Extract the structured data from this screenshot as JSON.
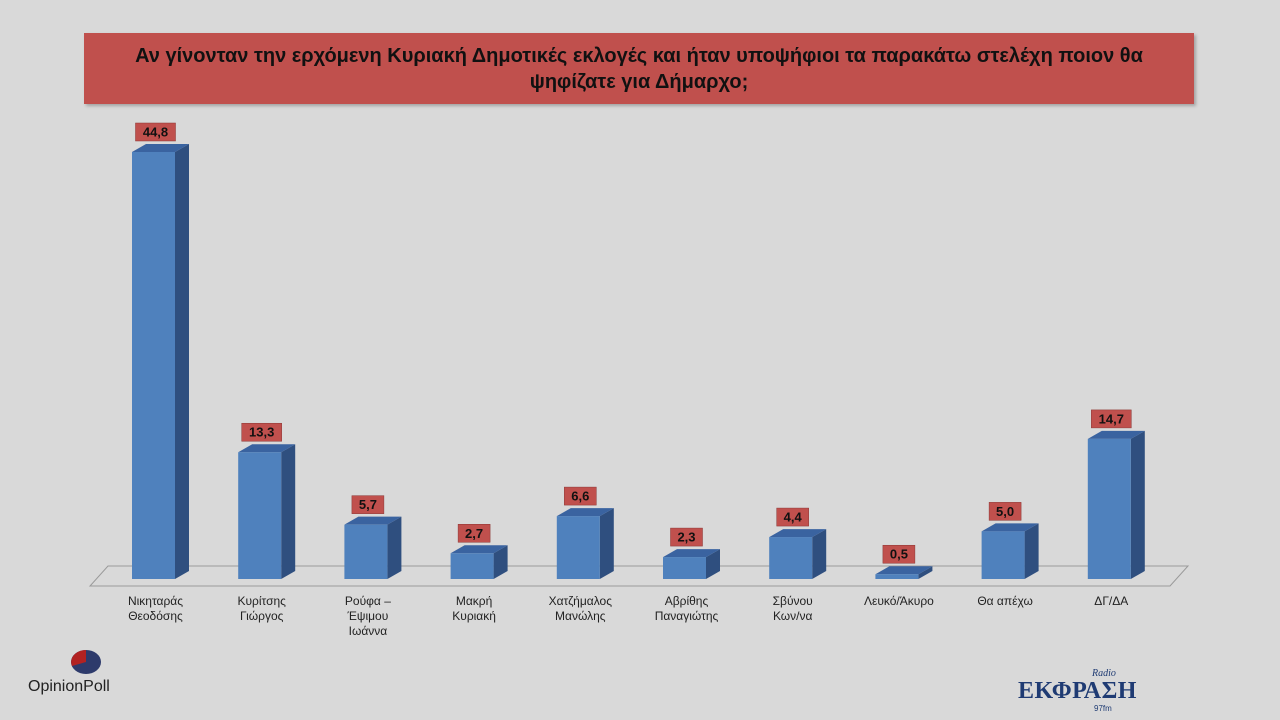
{
  "chart_data": {
    "type": "bar",
    "title": "Αν γίνονταν την ερχόμενη Κυριακή Δημοτικές εκλογές και ήταν υποψήφιοι τα παρακάτω στελέχη ποιον θα ψηφίζατε για Δήμαρχο;",
    "categories": [
      [
        "Νικηταράς",
        "Θεοδόσης"
      ],
      [
        "Κυρίτσης",
        "Γιώργος"
      ],
      [
        "Ρούφα –",
        "Έψιμου",
        "Ιωάννα"
      ],
      [
        "Μακρή",
        "Κυριακή"
      ],
      [
        "Χατζήμαλος",
        "Μανώλης"
      ],
      [
        "Αβρίθης",
        "Παναγιώτης"
      ],
      [
        "Σβύνου",
        "Κων/να"
      ],
      [
        "Λευκό/Άκυρο"
      ],
      [
        "Θα απέχω"
      ],
      [
        "ΔΓ/ΔΑ"
      ]
    ],
    "values": [
      44.8,
      13.3,
      5.7,
      2.7,
      6.6,
      2.3,
      4.4,
      0.5,
      5.0,
      14.7
    ],
    "value_labels": [
      "44,8",
      "13,3",
      "5,7",
      "2,7",
      "6,6",
      "2,3",
      "4,4",
      "0,5",
      "5,0",
      "14,7"
    ],
    "ylim": [
      0,
      50
    ],
    "xlabel": "",
    "ylabel": "",
    "grid": false,
    "legend": "none",
    "colors": {
      "bar_front": "#4f81bd",
      "bar_side": "#2f4f7f",
      "bar_top": "#3a63a0",
      "label_box": "#c0504d",
      "title_bg": "#c0504d"
    }
  },
  "logos": {
    "left": {
      "name": "OpinionPoll"
    },
    "right": {
      "top": "Radio",
      "name": "ΕΚΦΡΑΣΗ",
      "freq": "97fm"
    }
  }
}
